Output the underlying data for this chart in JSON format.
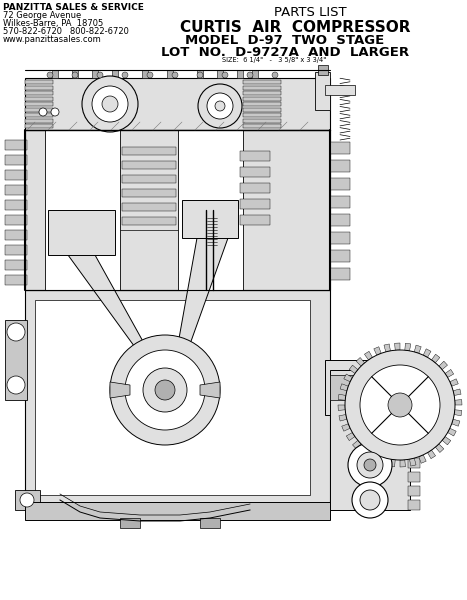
{
  "bg_color": "#ffffff",
  "title_parts_list": "PARTS LIST",
  "title_main": "CURTIS  AIR  COMPRESSOR",
  "title_model": "MODEL  D-97  TWO  STAGE",
  "title_lot": "LOT  NO.  D-9727A  AND  LARGER",
  "size_note": "SIZE:  6 1/4\"   -   3 5/8\" x 3 3/4\"",
  "company_lines": [
    "PANZITTA SALES & SERVICE",
    "72 George Avenue",
    "Wilkes-Barre, PA  18705",
    "570-822-6720   800-822-6720",
    "www.panzittasales.com"
  ]
}
